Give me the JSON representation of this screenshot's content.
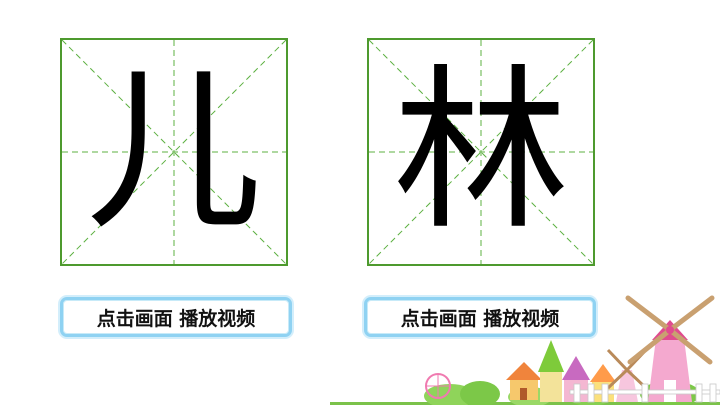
{
  "characters": [
    {
      "glyph": "儿"
    },
    {
      "glyph": "林"
    }
  ],
  "play_buttons": [
    {
      "label": "点击画面  播放视频"
    },
    {
      "label": "点击画面  播放视频"
    }
  ],
  "colors": {
    "grid_border": "#4e9a2e",
    "grid_dash": "#5cb040",
    "button_border": "#8fd2f2"
  },
  "decoration": {
    "icons": [
      "windmill-icon",
      "house-icon",
      "castle-icon",
      "fence-icon",
      "ferris-wheel-icon",
      "bushes-icon"
    ]
  }
}
